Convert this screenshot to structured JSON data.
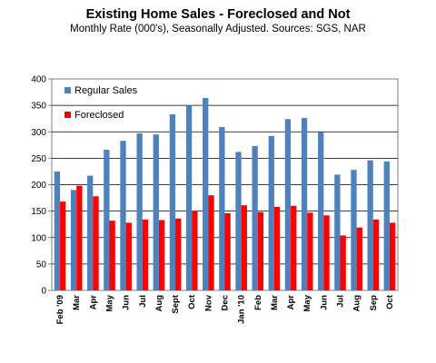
{
  "chart_data": {
    "type": "bar",
    "title": "Existing Home Sales - Foreclosed and Not",
    "subtitle": "Monthly Rate (000's), Seasonally Adjusted.  Sources: SGS, NAR",
    "categories": [
      "Feb '09",
      "Mar",
      "Apr",
      "May",
      "Jun",
      "Jul",
      "Aug",
      "Sept",
      "Oct",
      "Nov",
      "Dec",
      "Jan '10",
      "Feb",
      "Mar",
      "Apr",
      "May",
      "Jun",
      "Jul",
      "Aug",
      "Sep",
      "Oct"
    ],
    "series": [
      {
        "name": "Regular Sales",
        "color": "#4f81bd",
        "values": [
          225,
          190,
          217,
          266,
          283,
          297,
          295,
          333,
          350,
          364,
          309,
          262,
          273,
          292,
          324,
          326,
          299,
          219,
          228,
          246,
          244
        ]
      },
      {
        "name": "Foreclosed",
        "color": "#ff0000",
        "values": [
          168,
          198,
          178,
          132,
          128,
          134,
          133,
          136,
          150,
          180,
          146,
          161,
          148,
          158,
          160,
          147,
          142,
          104,
          119,
          134,
          128
        ]
      }
    ],
    "ylim": [
      0,
      400
    ],
    "yticks": [
      0,
      50,
      100,
      150,
      200,
      250,
      300,
      350,
      400
    ],
    "grid": true,
    "legend_position": "top-left"
  }
}
